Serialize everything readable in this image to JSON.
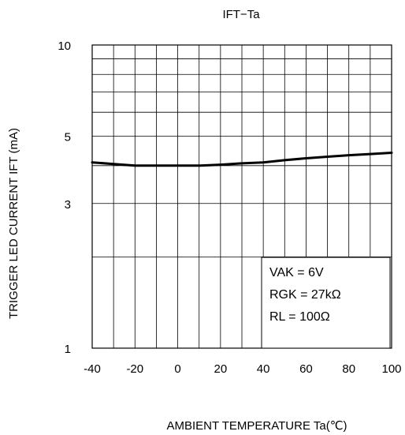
{
  "chart_data": {
    "type": "line",
    "title": "IFT−Ta",
    "xlabel": "AMBIENT TEMPERATURE Ta(℃)",
    "ylabel": "TRIGGER LED CURRENT IFT (mA)",
    "xlim": [
      -40,
      100
    ],
    "ylim": [
      1,
      10
    ],
    "yscale": "log",
    "grid": true,
    "x_ticks": [
      -40,
      -20,
      0,
      20,
      40,
      60,
      80,
      100
    ],
    "y_ticks": [
      1,
      3,
      5,
      10
    ],
    "x": [
      -40,
      -30,
      -20,
      -10,
      0,
      10,
      20,
      30,
      40,
      50,
      60,
      70,
      80,
      90,
      100
    ],
    "series": [
      {
        "values": [
          4.1,
          4.05,
          4.0,
          4.0,
          4.0,
          4.0,
          4.03,
          4.07,
          4.1,
          4.17,
          4.23,
          4.28,
          4.33,
          4.37,
          4.41
        ]
      }
    ],
    "annotations": [
      "VAK = 6V",
      "RGK = 27kΩ",
      "RL = 100Ω"
    ]
  },
  "colors": {
    "line": "#000000",
    "grid": "#000000",
    "background": "#ffffff"
  }
}
